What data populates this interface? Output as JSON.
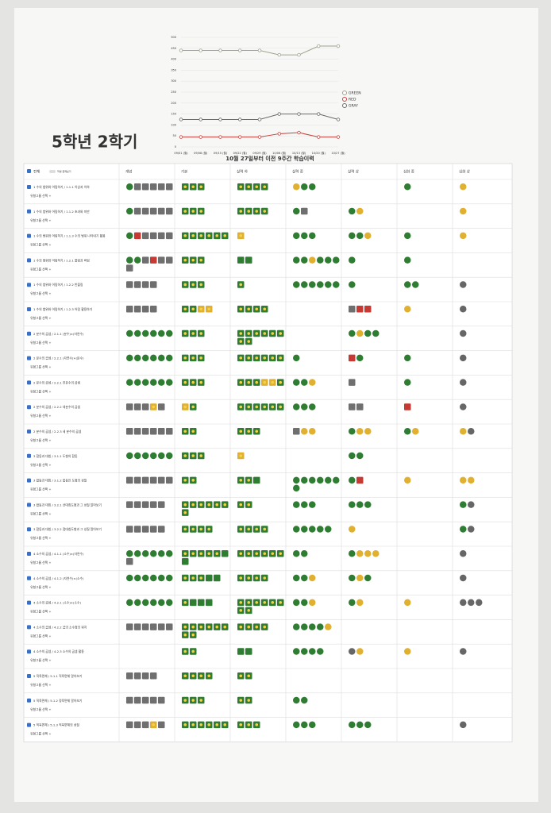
{
  "page_title": "5학년 2학기",
  "chart_data": {
    "type": "line",
    "x": [
      "09/01 (월)",
      "09/08 (월)",
      "09/15 (월)",
      "09/22 (월)",
      "09/29 (월)",
      "10/06 (월)",
      "10/13 (월)",
      "10/20 (월)",
      "10/27 (월)"
    ],
    "series": [
      {
        "name": "GREEN",
        "color": "#9ea38f",
        "values": [
          440,
          440,
          440,
          440,
          440,
          420,
          420,
          460,
          460
        ]
      },
      {
        "name": "RED",
        "color": "#c9403c",
        "values": [
          45,
          45,
          45,
          45,
          45,
          60,
          65,
          45,
          45
        ]
      },
      {
        "name": "GRAY",
        "color": "#6b6b6b",
        "values": [
          125,
          125,
          125,
          125,
          125,
          150,
          150,
          150,
          125
        ]
      }
    ],
    "ylim": [
      0,
      500
    ],
    "yticks": [
      0,
      50,
      100,
      150,
      200,
      250,
      300,
      350,
      400,
      450,
      500
    ],
    "grid": true
  },
  "table": {
    "title": "10월 27일부터 이전 9주간 학습이력",
    "select_all": "전체",
    "student_view": "학생 문제보기",
    "group_button": "유형그룹 선택 +",
    "columns": [
      "개념",
      "기본",
      "실력 하",
      "실력 중",
      "실력 상",
      "심화 중",
      "심화 상"
    ],
    "rows": [
      {
        "label": "1 수의 범위와 어림하기 / 1.1.1 이상과 이하"
      },
      {
        "label": "1 수의 범위와 어림하기 / 1.1.2 초과와 미만"
      },
      {
        "label": "1 수의 범위와 어림하기 / 1.1.3 수의 범위 나타내기 활용"
      },
      {
        "label": "1 수의 범위와 어림하기 / 1.2.1 올림과 버림"
      },
      {
        "label": "1 수의 범위와 어림하기 / 1.2.2 반올림"
      },
      {
        "label": "1 수의 범위와 어림하기 / 1.2.3 어림 활용하기"
      },
      {
        "label": "2 분수의 곱셈 / 2.1.1 (분수)×(자연수)"
      },
      {
        "label": "2 분수의 곱셈 / 2.2.1 (자연수)×(분수)"
      },
      {
        "label": "2 분수의 곱셈 / 2.2.1 진분수의 곱셈"
      },
      {
        "label": "2 분수의 곱셈 / 2.2.2 대분수의 곱셈"
      },
      {
        "label": "2 분수의 곱셈 / 2.2.3 세 분수의 곱셈"
      },
      {
        "label": "3 합동과 대칭 / 3.1.1 도형의 합동"
      },
      {
        "label": "3 합동과 대칭 / 3.1.2 합동인 도형의 성질"
      },
      {
        "label": "3 합동과 대칭 / 3.2.1 선대칭도형과 그 성질 알아보기"
      },
      {
        "label": "3 합동과 대칭 / 3.2.2 점대칭도형과 그 성질 알아보기"
      },
      {
        "label": "4 소수의 곱셈 / 4.1.1 (소수)×(자연수)"
      },
      {
        "label": "4 소수의 곱셈 / 4.1.2 (자연수)×(소수)"
      },
      {
        "label": "4 소수의 곱셈 / 4.2.1 (소수)×(소수)"
      },
      {
        "label": "4 소수의 곱셈 / 4.2.2 곱의 소수점의 위치"
      },
      {
        "label": "4 소수의 곱셈 / 4.2.3 소수의 곱셈 활용"
      },
      {
        "label": "5 직육면체 / 5.1.1 직육면체 알아보기"
      },
      {
        "label": "5 직육면체 / 5.1.2 정육면체 알아보기"
      },
      {
        "label": "5 직육면체 / 5.1.3 직육면체의 성질"
      }
    ]
  }
}
